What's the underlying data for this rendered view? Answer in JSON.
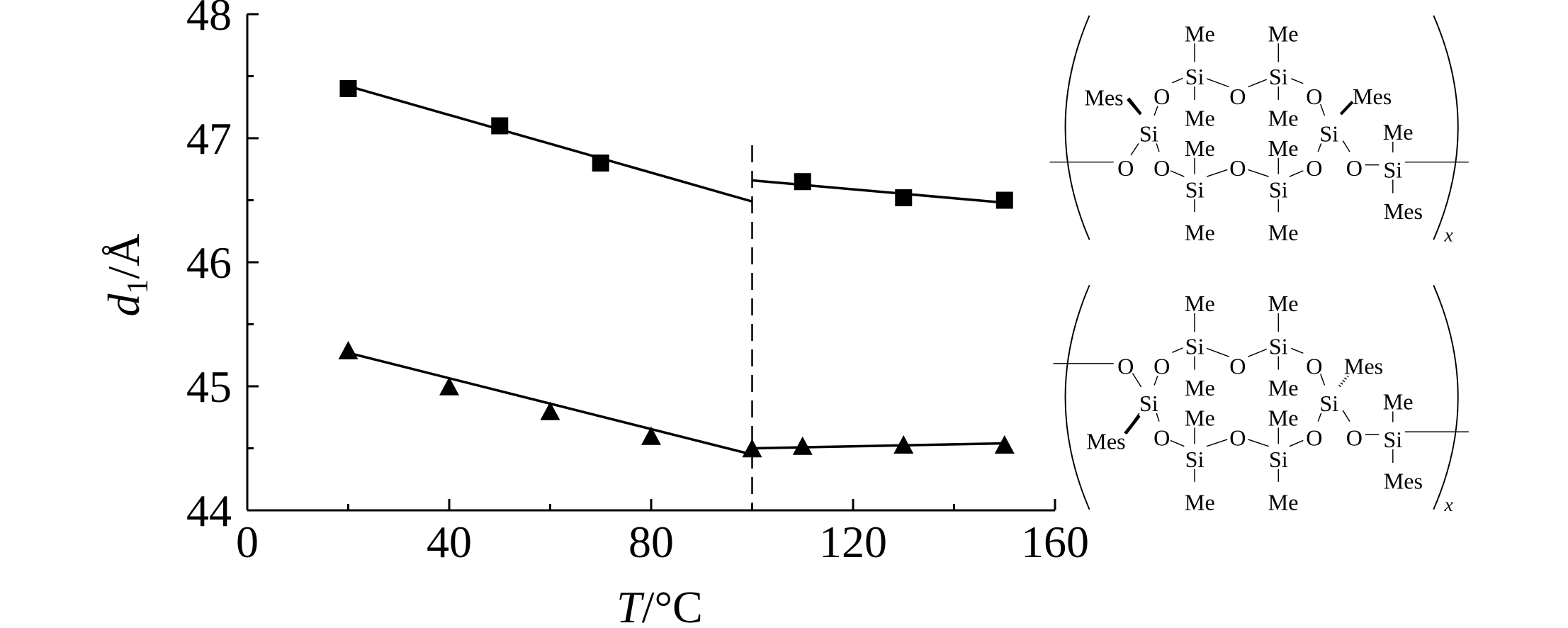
{
  "chart_data": {
    "type": "scatter",
    "xlabel": "T/°C",
    "xlabel_parts": {
      "var": "T",
      "unit": "/°C"
    },
    "ylabel": "d1/Å",
    "ylabel_parts": {
      "var": "d",
      "sub": "1",
      "unit": "/Å"
    },
    "xlim": [
      0,
      160
    ],
    "ylim": [
      44,
      48
    ],
    "xticks": [
      0,
      40,
      80,
      120,
      160
    ],
    "xtick_labels": [
      "0",
      "40",
      "80",
      "120",
      "160"
    ],
    "yticks": [
      44,
      45,
      46,
      47,
      48
    ],
    "ytick_labels": [
      "44",
      "45",
      "46",
      "47",
      "48"
    ],
    "grid": false,
    "vertical_dashed_line_x": 100,
    "series": [
      {
        "marker": "square",
        "x": [
          20,
          50,
          70,
          110,
          130,
          150
        ],
        "y": [
          47.4,
          47.1,
          46.8,
          46.65,
          46.52,
          46.5
        ],
        "fit_lines": [
          [
            [
              20,
              47.42
            ],
            [
              100,
              46.49
            ]
          ],
          [
            [
              100,
              46.66
            ],
            [
              150,
              46.48
            ]
          ]
        ]
      },
      {
        "marker": "triangle",
        "x": [
          20,
          40,
          60,
          80,
          100,
          110,
          130,
          150
        ],
        "y": [
          45.28,
          44.99,
          44.79,
          44.59,
          44.49,
          44.51,
          44.52,
          44.52
        ],
        "fit_lines": [
          [
            [
              20,
              45.27
            ],
            [
              100,
              44.45
            ]
          ],
          [
            [
              100,
              44.5
            ],
            [
              150,
              44.54
            ]
          ]
        ]
      }
    ],
    "colors": {
      "ink": "#000000",
      "background": "#ffffff"
    }
  },
  "structures": {
    "top": {
      "labels": [
        "Me",
        "Me",
        "Si",
        "Si",
        "Mes",
        "O",
        "O",
        "O",
        "Mes",
        "Me",
        "Me",
        "Si",
        "Si",
        "Me",
        "Me",
        "Me",
        "O",
        "O",
        "O",
        "O",
        "O",
        "Si",
        "Si",
        "Si",
        "Mes",
        "Me",
        "Me"
      ],
      "repeat": "x"
    },
    "bottom": {
      "labels": [
        "Me",
        "Me",
        "Si",
        "Si",
        "O",
        "O",
        "O",
        "O",
        "Mes",
        "Me",
        "Me",
        "Si",
        "Si",
        "Me",
        "Me",
        "Me",
        "Mes",
        "O",
        "O",
        "O",
        "O",
        "Si",
        "Si",
        "Si",
        "Mes",
        "Me",
        "Me"
      ],
      "repeat": "x"
    }
  }
}
